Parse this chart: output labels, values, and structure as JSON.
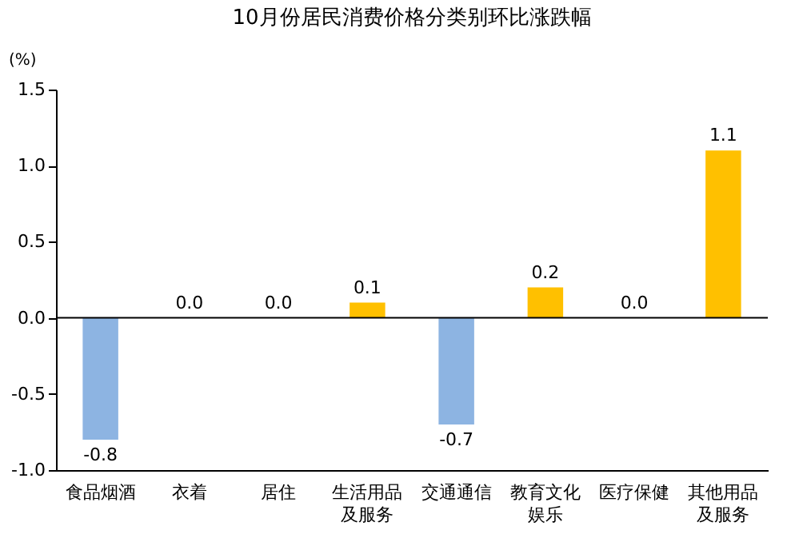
{
  "chart_data": {
    "type": "bar",
    "title": "10月份居民消费价格分类别环比涨跌幅",
    "ylabel": "(%)",
    "categories": [
      "食品烟酒",
      "衣着",
      "居住",
      "生活用品及服务",
      "交通通信",
      "教育文化娱乐",
      "医疗保健",
      "其他用品及服务"
    ],
    "values": [
      -0.8,
      0.0,
      0.0,
      0.1,
      -0.7,
      0.2,
      0.0,
      1.1
    ],
    "value_labels": [
      "-0.8",
      "0.0",
      "0.0",
      "0.1",
      "-0.7",
      "0.2",
      "0.0",
      "1.1"
    ],
    "colors": [
      "#8db4e2",
      "#ffc000",
      "#ffc000",
      "#ffc000",
      "#8db4e2",
      "#ffc000",
      "#ffc000",
      "#ffc000"
    ],
    "ylim": [
      -1.0,
      1.5
    ],
    "yticks": [
      {
        "value": -1,
        "label": "-1.0"
      },
      -0.5,
      {
        "value": 0,
        "label": "0.0"
      },
      0.5,
      {
        "value": 1,
        "label": "1.0"
      },
      1.5
    ],
    "ref_lines": [
      {
        "axis": "y",
        "value": 0
      }
    ],
    "grid": false
  }
}
